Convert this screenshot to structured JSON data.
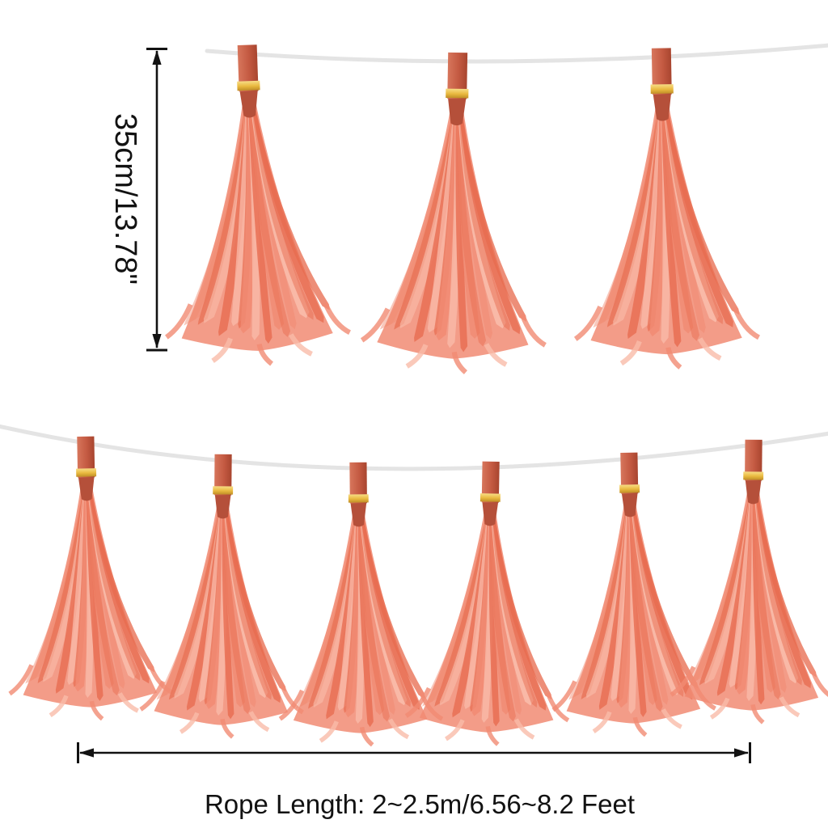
{
  "annotations": {
    "tassel_height": "35cm/13.78\"",
    "rope_length": "Rope Length: 2~2.5m/6.56~8.2 Feet"
  },
  "garland": {
    "rows": [
      {
        "position": "top",
        "tassel_count": 3
      },
      {
        "position": "bottom",
        "tassel_count": 6
      }
    ],
    "total_tassels": 9
  },
  "colors": {
    "background": "#ffffff",
    "rope": "#e4e4e4",
    "annotation_line": "#121212",
    "hanger_strip": "#c45a42",
    "strip_light": "#d7765c",
    "strip_dark": "#a8452f",
    "neck": "#b5503a",
    "gold_band": "#e9b93f",
    "gold_light": "#f7dd85",
    "gold_dark": "#c08f27",
    "fringe_base": "#f18b73",
    "fringe_light": "#f9bba9",
    "fringe_dark": "#e76c50"
  }
}
